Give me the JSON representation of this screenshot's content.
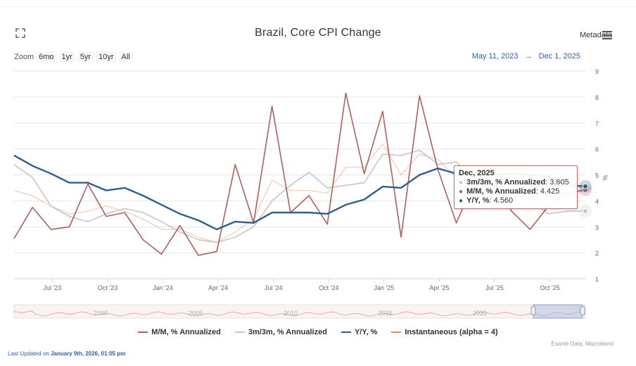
{
  "header": {
    "title": "Brazil, Core CPI Change",
    "metadata_label": "Metadata",
    "zoom_label": "Zoom",
    "zoom_buttons": [
      "6mo",
      "1yr",
      "5yr",
      "10yr",
      "All"
    ],
    "range_from": "May 11, 2023",
    "range_arrow": "→",
    "range_to": "Dec 1, 2025"
  },
  "tooltip": {
    "date": "Dec, 2025",
    "rows": [
      {
        "label": "3m/3m, % Annualized",
        "value": "3.605",
        "color": "#c6c6c6"
      },
      {
        "label": "M/M, % Annualized",
        "value": "4.425",
        "color": "#b05f5f"
      },
      {
        "label": "Y/Y, %",
        "value": "4.560",
        "color": "#2f5f8f"
      }
    ]
  },
  "legend": [
    {
      "label": "M/M, % Annualized",
      "color": "#b05f5f"
    },
    {
      "label": "3m/3m, % Annualized",
      "color": "#c6c6c6"
    },
    {
      "label": "Y/Y, %",
      "color": "#2f5f8f"
    },
    {
      "label": "Instantaneous (alpha = 4)",
      "color": "#ee8c5a"
    }
  ],
  "credits": "Exante Data, Macrobond",
  "updated_prefix": "Last Updated on",
  "updated_value": "January 9th, 2026, 01:05 pm",
  "navigator": {
    "year_labels": [
      "2000",
      "2005",
      "2010",
      "2015",
      "2020"
    ]
  },
  "chart_data": {
    "type": "line",
    "title": "Brazil, Core CPI Change",
    "ylabel": "%",
    "ylim": [
      1,
      9
    ],
    "y_ticks": [
      1,
      2,
      3,
      4,
      5,
      6,
      7,
      8,
      9
    ],
    "x_tick_labels": [
      "Jul '23",
      "Oct '23",
      "Jan '24",
      "Apr '24",
      "Jul '24",
      "Oct '24",
      "Jan '25",
      "Apr '25",
      "Jul '25",
      "Oct '25"
    ],
    "x": [
      "2023-05",
      "2023-06",
      "2023-07",
      "2023-08",
      "2023-09",
      "2023-10",
      "2023-11",
      "2023-12",
      "2024-01",
      "2024-02",
      "2024-03",
      "2024-04",
      "2024-05",
      "2024-06",
      "2024-07",
      "2024-08",
      "2024-09",
      "2024-10",
      "2024-11",
      "2024-12",
      "2025-01",
      "2025-02",
      "2025-03",
      "2025-04",
      "2025-05",
      "2025-06",
      "2025-07",
      "2025-08",
      "2025-09",
      "2025-10",
      "2025-11",
      "2025-12"
    ],
    "grid": true,
    "legend_position": "bottom",
    "series": [
      {
        "name": "M/M, % Annualized",
        "color": "#b05f5f",
        "values": [
          2.55,
          3.75,
          2.9,
          3.0,
          4.65,
          3.4,
          3.55,
          2.5,
          1.95,
          3.05,
          1.9,
          2.05,
          5.4,
          3.15,
          7.65,
          3.55,
          4.2,
          3.1,
          8.15,
          5.05,
          7.45,
          2.6,
          8.05,
          5.2,
          3.15,
          4.8,
          4.7,
          3.6,
          2.9,
          3.8,
          4.3,
          4.425
        ]
      },
      {
        "name": "3m/3m, % Annualized",
        "color": "#c6c6c6",
        "values": [
          5.4,
          4.9,
          3.8,
          3.4,
          3.2,
          3.5,
          3.7,
          3.55,
          3.2,
          2.8,
          2.5,
          2.4,
          2.6,
          3.0,
          4.0,
          4.6,
          5.1,
          4.5,
          4.6,
          4.7,
          5.8,
          5.75,
          5.95,
          5.4,
          5.5,
          4.8,
          4.8,
          4.9,
          4.0,
          3.5,
          3.6,
          3.605
        ]
      },
      {
        "name": "Y/Y, %",
        "color": "#2f5f8f",
        "values": [
          5.75,
          5.35,
          5.05,
          4.7,
          4.7,
          4.4,
          4.5,
          4.2,
          3.85,
          3.5,
          3.25,
          2.9,
          3.2,
          3.15,
          3.55,
          3.55,
          3.55,
          3.5,
          3.85,
          4.05,
          4.55,
          4.5,
          5.0,
          5.25,
          5.05,
          5.0,
          5.0,
          5.05,
          5.0,
          4.95,
          4.6,
          4.56
        ]
      },
      {
        "name": "Instantaneous (alpha = 4)",
        "color": "#ee8c5a",
        "values": [
          4.4,
          4.2,
          3.8,
          3.5,
          3.6,
          3.8,
          3.6,
          3.3,
          2.9,
          2.9,
          2.6,
          2.4,
          2.8,
          3.3,
          4.8,
          4.4,
          4.4,
          4.3,
          5.3,
          5.3,
          6.2,
          5.0,
          5.8,
          5.6,
          4.9,
          4.7,
          4.6,
          4.5,
          4.0,
          3.8,
          4.2,
          4.4
        ]
      }
    ]
  }
}
